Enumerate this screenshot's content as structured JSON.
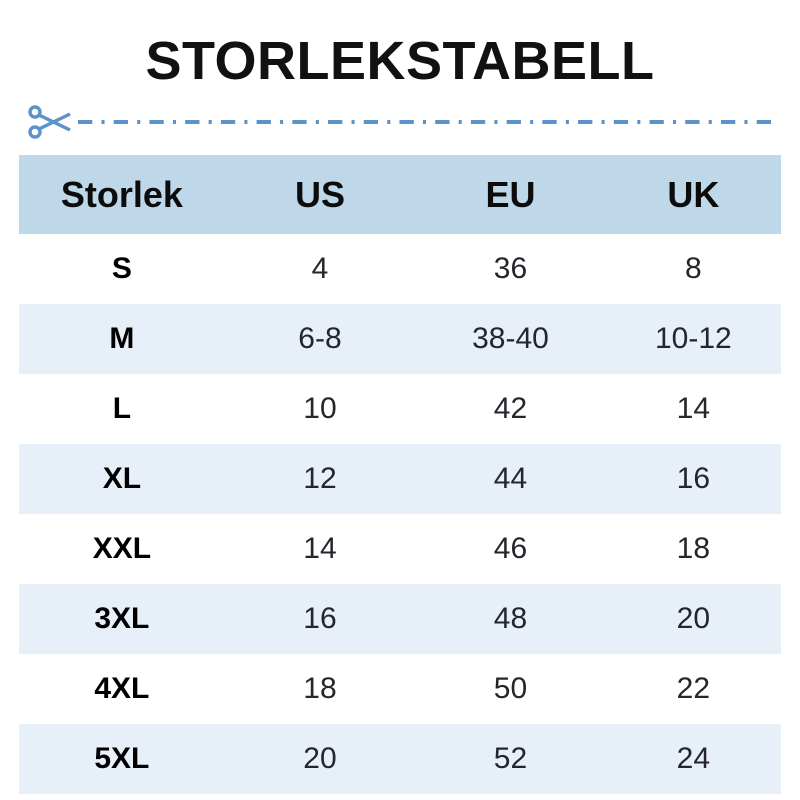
{
  "title": "STORLEKSTABELL",
  "cut_line": {
    "icon": "scissors-icon",
    "style": "dash-dot"
  },
  "table": {
    "headers": [
      "Storlek",
      "US",
      "EU",
      "UK"
    ],
    "rows": [
      [
        "S",
        "4",
        "36",
        "8"
      ],
      [
        "M",
        "6-8",
        "38-40",
        "10-12"
      ],
      [
        "L",
        "10",
        "42",
        "14"
      ],
      [
        "XL",
        "12",
        "44",
        "16"
      ],
      [
        "XXL",
        "14",
        "46",
        "18"
      ],
      [
        "3XL",
        "16",
        "48",
        "20"
      ],
      [
        "4XL",
        "18",
        "50",
        "22"
      ],
      [
        "5XL",
        "20",
        "52",
        "24"
      ]
    ]
  },
  "colors": {
    "accent": "#5b92c8",
    "header_bg": "#bed8e9",
    "row_alt_bg": "#e7f0f8",
    "title_text": "#111111",
    "cell_text": "#24262b"
  }
}
